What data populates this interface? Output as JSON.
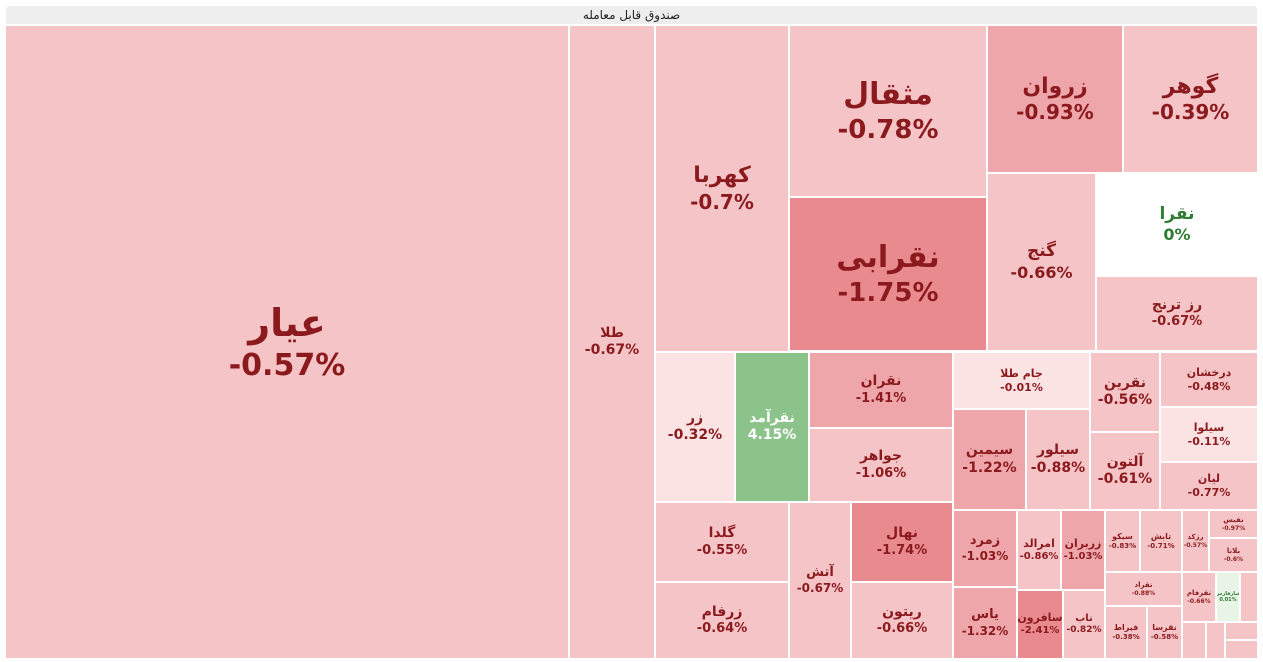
{
  "title": "صندوق قابل معامله",
  "chart_data": {
    "type": "treemap",
    "title": "صندوق قابل معامله",
    "colors": {
      "neg_light": "#f5c4c6",
      "neg_mid": "#efa6aa",
      "neg_strong": "#e88a8e",
      "neg_vlight": "#fbe3e4",
      "neutral": "#ffffff",
      "pos": "#8bc38a",
      "pos_light": "#e8f4e6"
    },
    "items": [
      {
        "name": "عیار",
        "change": "-0.57%",
        "value": -0.57
      },
      {
        "name": "طلا",
        "change": "-0.67%",
        "value": -0.67
      },
      {
        "name": "کهربا",
        "change": "-0.7%",
        "value": -0.7
      },
      {
        "name": "مثقال",
        "change": "-0.78%",
        "value": -0.78
      },
      {
        "name": "زروان",
        "change": "-0.93%",
        "value": -0.93
      },
      {
        "name": "گوهر",
        "change": "-0.39%",
        "value": -0.39
      },
      {
        "name": "نقرابی",
        "change": "-1.75%",
        "value": -1.75
      },
      {
        "name": "گنج",
        "change": "-0.66%",
        "value": -0.66
      },
      {
        "name": "نقرا",
        "change": "0%",
        "value": 0
      },
      {
        "name": "رز ترنج",
        "change": "-0.67%",
        "value": -0.67
      },
      {
        "name": "زر",
        "change": "-0.32%",
        "value": -0.32
      },
      {
        "name": "نقرآمد",
        "change": "4.15%",
        "value": 4.15
      },
      {
        "name": "نقران",
        "change": "-1.41%",
        "value": -1.41
      },
      {
        "name": "جواهر",
        "change": "-1.06%",
        "value": -1.06
      },
      {
        "name": "جام طلا",
        "change": "-0.01%",
        "value": -0.01
      },
      {
        "name": "سیمین",
        "change": "-1.22%",
        "value": -1.22
      },
      {
        "name": "سیلور",
        "change": "-0.88%",
        "value": -0.88
      },
      {
        "name": "نقرین",
        "change": "-0.56%",
        "value": -0.56
      },
      {
        "name": "آلتون",
        "change": "-0.61%",
        "value": -0.61
      },
      {
        "name": "درخشان",
        "change": "-0.48%",
        "value": -0.48
      },
      {
        "name": "سیلوا",
        "change": "-0.11%",
        "value": -0.11
      },
      {
        "name": "لیان",
        "change": "-0.77%",
        "value": -0.77
      },
      {
        "name": "گلدا",
        "change": "-0.55%",
        "value": -0.55
      },
      {
        "name": "زرفام",
        "change": "-0.64%",
        "value": -0.64
      },
      {
        "name": "آتش",
        "change": "-0.67%",
        "value": -0.67
      },
      {
        "name": "نهال",
        "change": "-1.74%",
        "value": -1.74
      },
      {
        "name": "ریتون",
        "change": "-0.66%",
        "value": -0.66
      },
      {
        "name": "زمرد",
        "change": "-1.03%",
        "value": -1.03
      },
      {
        "name": "امرالد",
        "change": "-0.86%",
        "value": -0.86
      },
      {
        "name": "زربران",
        "change": "-1.03%",
        "value": -1.03
      },
      {
        "name": "یاس",
        "change": "-1.32%",
        "value": -1.32
      },
      {
        "name": "سافرون",
        "change": "-2.41%",
        "value": -2.41
      },
      {
        "name": "ناب",
        "change": "-0.82%",
        "value": -0.82
      },
      {
        "name": "سیکو",
        "change": "-0.83%",
        "value": -0.83
      },
      {
        "name": "تابش",
        "change": "-0.71%",
        "value": -0.71
      },
      {
        "name": "رزکد",
        "change": "-0.57%",
        "value": -0.57
      },
      {
        "name": "نفیس",
        "change": "-0.97%",
        "value": -0.97
      },
      {
        "name": "بلانا",
        "change": "-0.6%",
        "value": -0.6
      },
      {
        "name": "نقراد",
        "change": "-0.88%",
        "value": -0.88
      },
      {
        "name": "نقرفام",
        "change": "-0.66%",
        "value": -0.66
      },
      {
        "name": "فیراط",
        "change": "-0.38%",
        "value": -0.38
      },
      {
        "name": "نقرسا",
        "change": "-0.58%",
        "value": -0.58
      },
      {
        "name": "عیارفارس",
        "change": "0.01%",
        "value": 0.01
      }
    ]
  }
}
